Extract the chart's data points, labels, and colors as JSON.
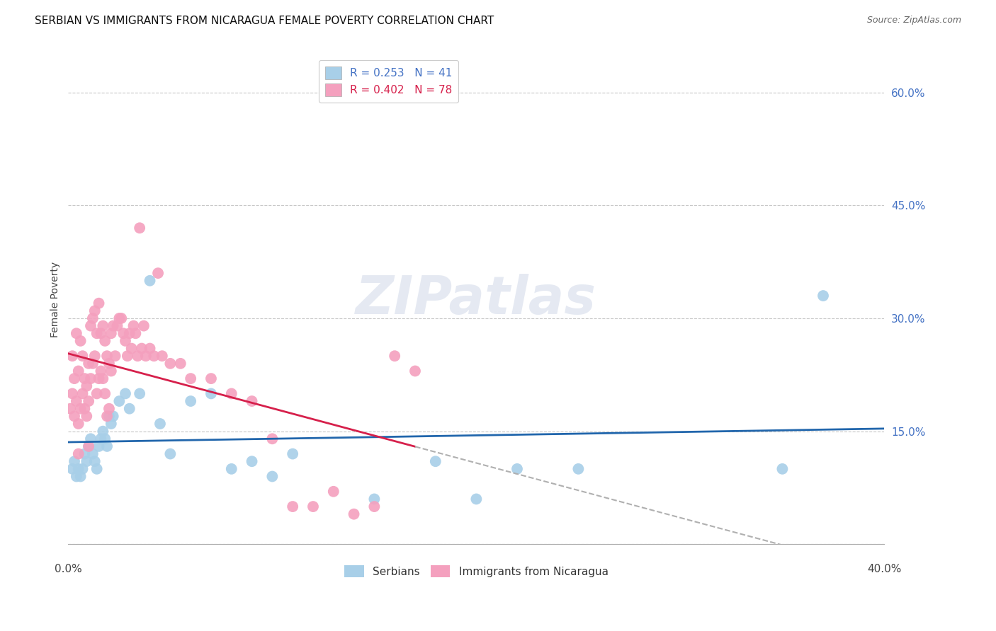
{
  "title": "SERBIAN VS IMMIGRANTS FROM NICARAGUA FEMALE POVERTY CORRELATION CHART",
  "source": "Source: ZipAtlas.com",
  "ylabel": "Female Poverty",
  "xlim": [
    0.0,
    0.4
  ],
  "ylim": [
    0.0,
    0.65
  ],
  "yticks": [
    0.0,
    0.15,
    0.3,
    0.45,
    0.6
  ],
  "ytick_labels": [
    "",
    "15.0%",
    "30.0%",
    "45.0%",
    "60.0%"
  ],
  "watermark": "ZIPatlas",
  "series_serbian": {
    "color": "#a8cfe8",
    "line_color": "#2166ac",
    "R": 0.253,
    "N": 41,
    "x": [
      0.002,
      0.003,
      0.004,
      0.005,
      0.006,
      0.007,
      0.008,
      0.009,
      0.01,
      0.011,
      0.012,
      0.013,
      0.014,
      0.015,
      0.016,
      0.017,
      0.018,
      0.019,
      0.02,
      0.021,
      0.022,
      0.025,
      0.028,
      0.03,
      0.035,
      0.04,
      0.045,
      0.05,
      0.06,
      0.07,
      0.08,
      0.09,
      0.1,
      0.11,
      0.15,
      0.18,
      0.2,
      0.22,
      0.25,
      0.35,
      0.37
    ],
    "y": [
      0.1,
      0.11,
      0.09,
      0.1,
      0.09,
      0.1,
      0.12,
      0.11,
      0.13,
      0.14,
      0.12,
      0.11,
      0.1,
      0.13,
      0.14,
      0.15,
      0.14,
      0.13,
      0.17,
      0.16,
      0.17,
      0.19,
      0.2,
      0.18,
      0.2,
      0.35,
      0.16,
      0.12,
      0.19,
      0.2,
      0.1,
      0.11,
      0.09,
      0.12,
      0.06,
      0.11,
      0.06,
      0.1,
      0.1,
      0.1,
      0.33
    ]
  },
  "series_nicaragua": {
    "color": "#f4a0be",
    "line_color": "#d6204b",
    "R": 0.402,
    "N": 78,
    "x": [
      0.001,
      0.002,
      0.002,
      0.003,
      0.003,
      0.004,
      0.004,
      0.005,
      0.005,
      0.006,
      0.006,
      0.007,
      0.007,
      0.008,
      0.008,
      0.009,
      0.009,
      0.01,
      0.01,
      0.011,
      0.011,
      0.012,
      0.012,
      0.013,
      0.013,
      0.014,
      0.014,
      0.015,
      0.015,
      0.016,
      0.016,
      0.017,
      0.017,
      0.018,
      0.018,
      0.019,
      0.019,
      0.02,
      0.02,
      0.021,
      0.021,
      0.022,
      0.023,
      0.024,
      0.025,
      0.026,
      0.027,
      0.028,
      0.029,
      0.03,
      0.031,
      0.032,
      0.033,
      0.034,
      0.035,
      0.036,
      0.037,
      0.038,
      0.04,
      0.042,
      0.044,
      0.046,
      0.05,
      0.055,
      0.06,
      0.07,
      0.08,
      0.09,
      0.1,
      0.11,
      0.12,
      0.13,
      0.14,
      0.15,
      0.16,
      0.17,
      0.005,
      0.01
    ],
    "y": [
      0.18,
      0.2,
      0.25,
      0.22,
      0.17,
      0.19,
      0.28,
      0.16,
      0.23,
      0.27,
      0.18,
      0.25,
      0.2,
      0.22,
      0.18,
      0.21,
      0.17,
      0.24,
      0.19,
      0.29,
      0.22,
      0.3,
      0.24,
      0.31,
      0.25,
      0.28,
      0.2,
      0.32,
      0.22,
      0.28,
      0.23,
      0.29,
      0.22,
      0.27,
      0.2,
      0.25,
      0.17,
      0.24,
      0.18,
      0.28,
      0.23,
      0.29,
      0.25,
      0.29,
      0.3,
      0.3,
      0.28,
      0.27,
      0.25,
      0.28,
      0.26,
      0.29,
      0.28,
      0.25,
      0.42,
      0.26,
      0.29,
      0.25,
      0.26,
      0.25,
      0.36,
      0.25,
      0.24,
      0.24,
      0.22,
      0.22,
      0.2,
      0.19,
      0.14,
      0.05,
      0.05,
      0.07,
      0.04,
      0.05,
      0.25,
      0.23,
      0.12,
      0.13
    ]
  },
  "title_fontsize": 11,
  "source_fontsize": 9,
  "axis_label_fontsize": 10,
  "tick_fontsize": 11,
  "legend_fontsize": 11,
  "background_color": "#ffffff",
  "grid_color": "#c8c8c8",
  "right_tick_color": "#4472c4"
}
